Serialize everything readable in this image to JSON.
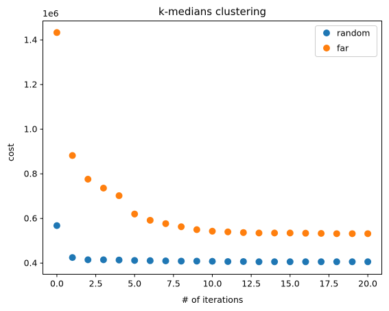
{
  "chart_data": {
    "type": "scatter",
    "title": "k-medians clustering",
    "xlabel": "# of iterations",
    "ylabel": "cost",
    "y_multiplier_label": "1e6",
    "xlim": [
      -0.9,
      20.9
    ],
    "ylim": [
      0.35,
      1.485
    ],
    "x_ticks": [
      0.0,
      2.5,
      5.0,
      7.5,
      10.0,
      12.5,
      15.0,
      17.5,
      20.0
    ],
    "x_tick_labels": [
      "0.0",
      "2.5",
      "5.0",
      "7.5",
      "10.0",
      "12.5",
      "15.0",
      "17.5",
      "20.0"
    ],
    "y_ticks": [
      0.4,
      0.6,
      0.8,
      1.0,
      1.2,
      1.4
    ],
    "y_tick_labels": [
      "0.4",
      "0.6",
      "0.8",
      "1.0",
      "1.2",
      "1.4"
    ],
    "grid": false,
    "legend_position": "top-right",
    "x": [
      0,
      1,
      2,
      3,
      4,
      5,
      6,
      7,
      8,
      9,
      10,
      11,
      12,
      13,
      14,
      15,
      16,
      17,
      18,
      19,
      20
    ],
    "series": [
      {
        "name": "random",
        "color": "#1f77b4",
        "values": [
          0.568,
          0.425,
          0.415,
          0.415,
          0.414,
          0.412,
          0.411,
          0.41,
          0.409,
          0.409,
          0.408,
          0.407,
          0.407,
          0.406,
          0.406,
          0.406,
          0.406,
          0.406,
          0.406,
          0.406,
          0.406
        ]
      },
      {
        "name": "far",
        "color": "#ff7f0e",
        "values": [
          1.433,
          0.882,
          0.776,
          0.736,
          0.702,
          0.62,
          0.592,
          0.577,
          0.563,
          0.55,
          0.543,
          0.54,
          0.537,
          0.535,
          0.535,
          0.535,
          0.534,
          0.533,
          0.532,
          0.532,
          0.532
        ]
      }
    ]
  }
}
